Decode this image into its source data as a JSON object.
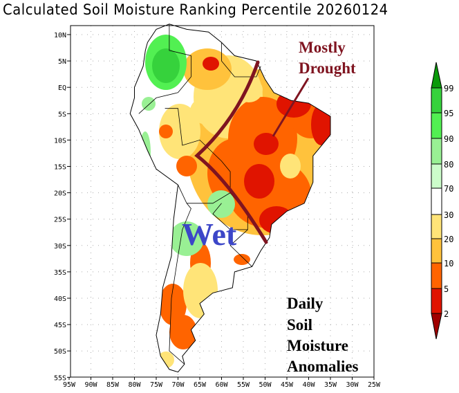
{
  "title": "Calculated Soil Moisture Ranking Percentile 20260124",
  "map": {
    "lat_labels": [
      "10N",
      "5N",
      "EQ",
      "5S",
      "10S",
      "15S",
      "20S",
      "25S",
      "30S",
      "35S",
      "40S",
      "45S",
      "50S",
      "55S"
    ],
    "lon_labels": [
      "95W",
      "90W",
      "85W",
      "80W",
      "75W",
      "70W",
      "65W",
      "60W",
      "55W",
      "50W",
      "45W",
      "40W",
      "35W",
      "30W",
      "25W"
    ],
    "lat_range": [
      -55,
      12
    ],
    "lon_range": [
      -95,
      -25
    ]
  },
  "annotations": {
    "drought_line1": "Mostly",
    "drought_line2": "Drought",
    "wet": "Wet",
    "legend_text": [
      "Daily",
      "Soil",
      "Moisture",
      "Anomalies"
    ]
  },
  "colorbar": {
    "labels": [
      "99",
      "95",
      "90",
      "80",
      "70",
      "30",
      "20",
      "10",
      "5",
      "2"
    ],
    "colors": [
      "#0a9a0a",
      "#36d23c",
      "#52f052",
      "#99f094",
      "#ccfcca",
      "#ffffff",
      "#ffe478",
      "#ffc23c",
      "#ff6400",
      "#e01400",
      "#a00000"
    ]
  },
  "colors": {
    "drought_line": "#7f1420",
    "wet_text": "#3c46c8"
  }
}
